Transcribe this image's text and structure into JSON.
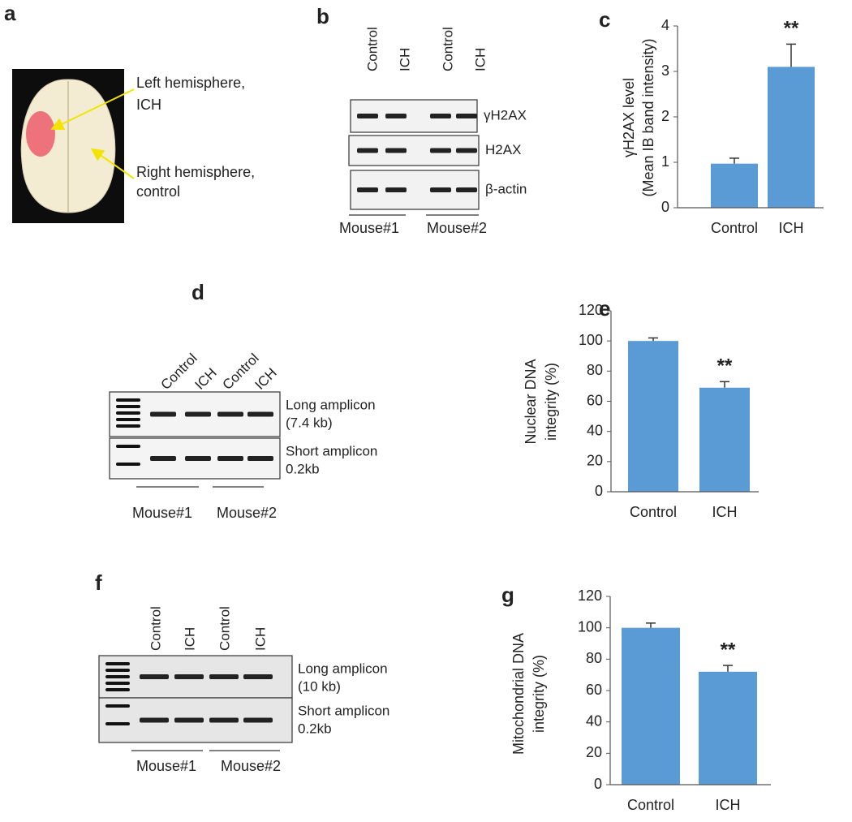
{
  "panels": {
    "a": {
      "letter": "a",
      "labels": [
        [
          "Left hemisphere,",
          "ICH"
        ],
        [
          "Right hemisphere,",
          "control"
        ]
      ]
    },
    "b": {
      "letter": "b",
      "lanes": [
        "Control",
        "ICH",
        "Control",
        "ICH"
      ],
      "bands": [
        "γH2AX",
        "H2AX",
        "β-actin"
      ],
      "mice": [
        "Mouse#1",
        "Mouse#2"
      ]
    },
    "d": {
      "letter": "d",
      "lanes": [
        "Control",
        "ICH",
        "Control",
        "ICH"
      ],
      "bands": [
        [
          "Long amplicon",
          "(7.4 kb)"
        ],
        [
          "Short amplicon",
          "0.2kb"
        ]
      ],
      "mice": [
        "Mouse#1",
        "Mouse#2"
      ]
    },
    "f": {
      "letter": "f",
      "lanes": [
        "Control",
        "ICH",
        "Control",
        "ICH"
      ],
      "bands": [
        [
          "Long amplicon",
          "(10 kb)"
        ],
        [
          "Short amplicon",
          "0.2kb"
        ]
      ],
      "mice": [
        "Mouse#1",
        "Mouse#2"
      ]
    }
  },
  "chart_data": [
    {
      "type": "bar",
      "letter": "c",
      "ylabel": [
        "γH2AX level",
        "(Mean IB band intensity)"
      ],
      "categories": [
        "Control",
        "ICH"
      ],
      "values": [
        0.97,
        3.1
      ],
      "errors": [
        0.12,
        0.5
      ],
      "color": "#5b9bd5",
      "ylim": [
        0,
        4
      ],
      "yticks": [
        0,
        1,
        2,
        3,
        4
      ],
      "annotations": [
        {
          "category": "ICH",
          "text": "**"
        }
      ]
    },
    {
      "type": "bar",
      "letter": "e",
      "ylabel": [
        "Nuclear DNA",
        "integrity (%)"
      ],
      "categories": [
        "Control",
        "ICH"
      ],
      "values": [
        100,
        69
      ],
      "errors": [
        2,
        4
      ],
      "color": "#5b9bd5",
      "ylim": [
        0,
        120
      ],
      "yticks": [
        0,
        20,
        40,
        60,
        80,
        100,
        120
      ],
      "annotations": [
        {
          "category": "ICH",
          "text": "**"
        }
      ]
    },
    {
      "type": "bar",
      "letter": "g",
      "ylabel": [
        "Mitochondrial DNA",
        "integrity (%)"
      ],
      "categories": [
        "Control",
        "ICH"
      ],
      "values": [
        100,
        72
      ],
      "errors": [
        3,
        4
      ],
      "color": "#5b9bd5",
      "ylim": [
        0,
        120
      ],
      "yticks": [
        0,
        20,
        40,
        60,
        80,
        100,
        120
      ],
      "annotations": [
        {
          "category": "ICH",
          "text": "**"
        }
      ]
    }
  ]
}
